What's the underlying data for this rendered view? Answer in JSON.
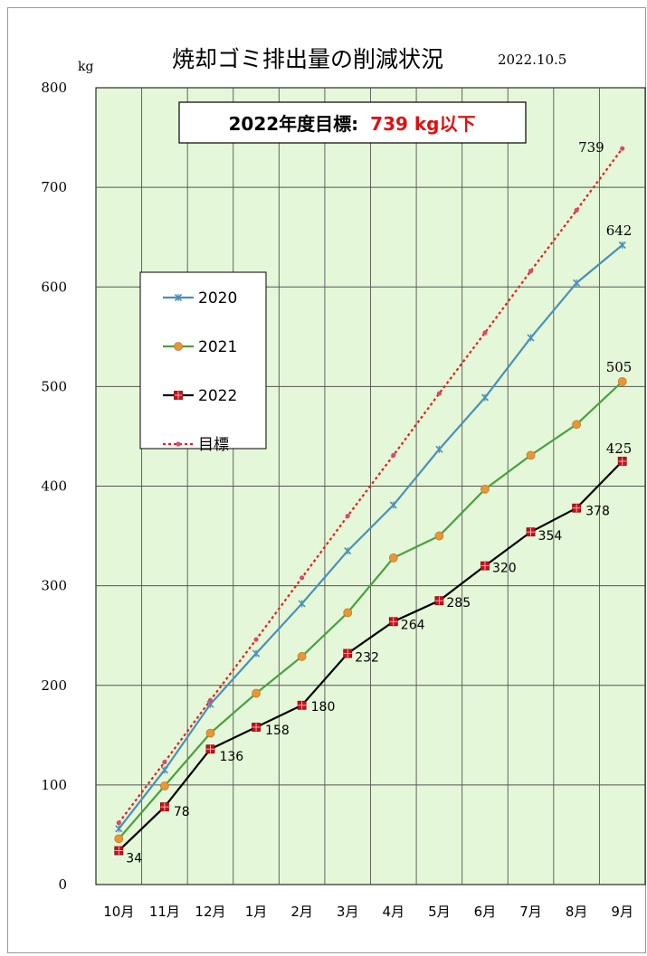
{
  "chart_data": {
    "type": "line",
    "title": "焼却ゴミ排出量の削減状況",
    "date": "2022.10.5",
    "ylabel": "kg",
    "ylim": [
      0,
      800
    ],
    "yticks": [
      "0",
      "100",
      "200",
      "300",
      "400",
      "500",
      "600",
      "700",
      "800"
    ],
    "categories": [
      "10月",
      "11月",
      "12月",
      "1月",
      "2月",
      "3月",
      "4月",
      "5月",
      "6月",
      "7月",
      "8月",
      "9月"
    ],
    "target_box": {
      "prefix": "2022年度目標:",
      "value": "739 kg以下"
    },
    "grid": true,
    "legend_position": "left",
    "series": [
      {
        "name": "2020",
        "color": "#4a90b8",
        "marker": "x",
        "dash": "",
        "values": [
          56,
          115,
          181,
          232,
          282,
          335,
          381,
          437,
          489,
          549,
          604,
          642
        ],
        "labels": [
          null,
          null,
          null,
          null,
          null,
          null,
          null,
          null,
          null,
          null,
          null,
          "642"
        ]
      },
      {
        "name": "2021",
        "color": "#4aa040",
        "marker": "circle",
        "dash": "",
        "values": [
          46,
          99,
          152,
          192,
          229,
          273,
          328,
          350,
          397,
          431,
          462,
          505
        ],
        "labels": [
          null,
          null,
          null,
          null,
          null,
          null,
          null,
          null,
          null,
          null,
          null,
          "505"
        ]
      },
      {
        "name": "2022",
        "color": "#000000",
        "marker": "square",
        "dash": "",
        "values": [
          34,
          78,
          136,
          158,
          180,
          232,
          264,
          285,
          320,
          354,
          378,
          425
        ],
        "labels": [
          "34",
          "78",
          "136",
          "158",
          "180",
          "232",
          "264",
          "285",
          "320",
          "354",
          "378",
          "425"
        ]
      },
      {
        "name": "目標",
        "color": "#e02020",
        "marker": "dot",
        "dash": "3,3",
        "values": [
          62,
          123,
          185,
          246,
          308,
          370,
          431,
          493,
          554,
          616,
          677,
          739
        ],
        "labels": [
          null,
          null,
          null,
          null,
          null,
          null,
          null,
          null,
          null,
          null,
          null,
          "739"
        ]
      }
    ]
  }
}
